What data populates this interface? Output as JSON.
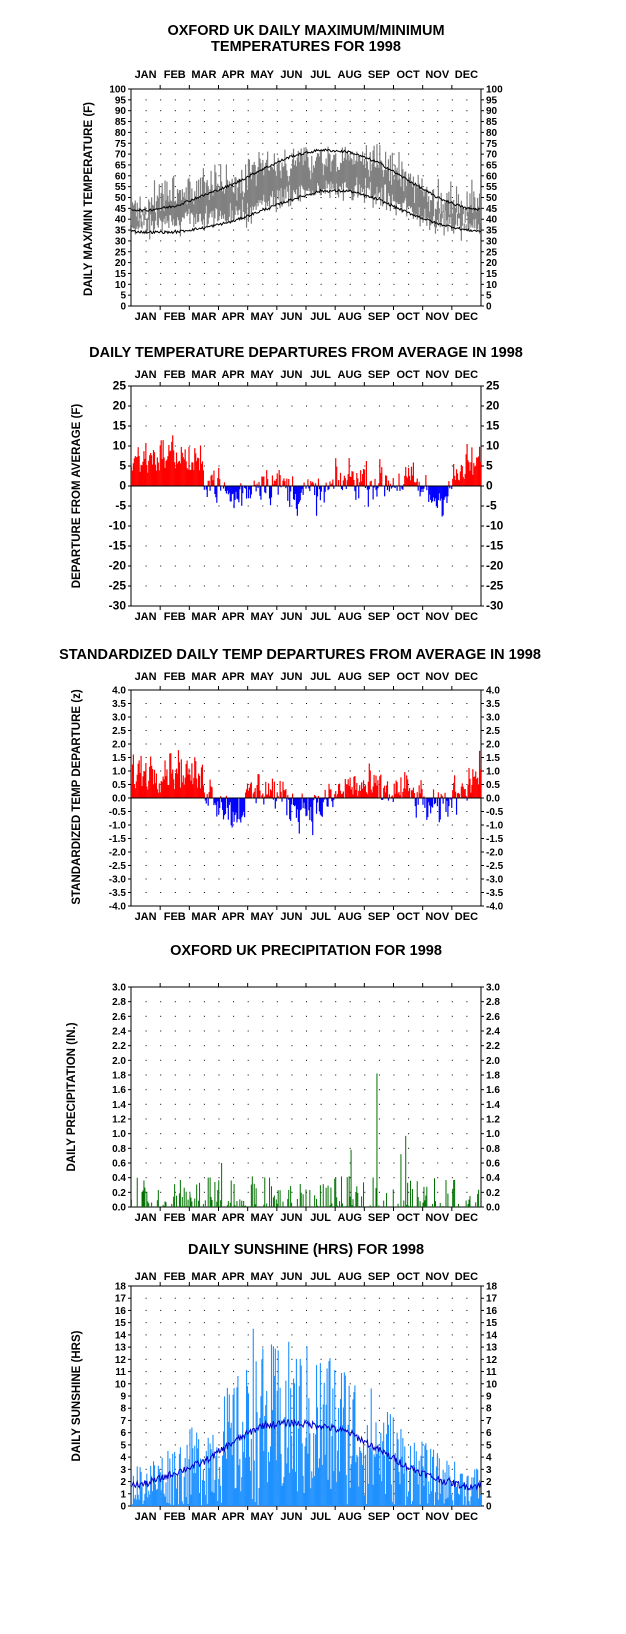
{
  "months": [
    "JAN",
    "FEB",
    "MAR",
    "APR",
    "MAY",
    "JUN",
    "JUL",
    "AUG",
    "SEP",
    "OCT",
    "NOV",
    "DEC"
  ],
  "chart_data": [
    {
      "id": "temps",
      "type": "line",
      "title_lines": [
        "OXFORD UK DAILY MAXIMUM/MINIMUM",
        "TEMPERATURES FOR 1998"
      ],
      "ylabel": "DAILY MAX/MIN TEMPERATURE (F)",
      "ylim": [
        0,
        100
      ],
      "yticks": [
        0,
        5,
        10,
        15,
        20,
        25,
        30,
        35,
        40,
        45,
        50,
        55,
        60,
        65,
        70,
        75,
        80,
        85,
        90,
        95,
        100
      ],
      "x": "day of year 1-365",
      "series": [
        {
          "kind": "daily-range",
          "color": "#808080",
          "monthly_mean_max": [
            47,
            51,
            54,
            56,
            64,
            66,
            68,
            69,
            66,
            58,
            49,
            47
          ],
          "monthly_mean_min": [
            38,
            40,
            42,
            41,
            46,
            52,
            53,
            54,
            51,
            45,
            38,
            37
          ]
        },
        {
          "kind": "normal-max",
          "color": "#000000",
          "monthly": [
            44,
            46,
            51,
            56,
            63,
            69,
            72,
            71,
            66,
            58,
            50,
            45
          ]
        },
        {
          "kind": "normal-min",
          "color": "#000000",
          "monthly": [
            34,
            34,
            36,
            39,
            44,
            49,
            53,
            53,
            49,
            43,
            38,
            35
          ]
        }
      ],
      "grid": true
    },
    {
      "id": "depart",
      "type": "bar",
      "title_lines": [
        "DAILY TEMPERATURE DEPARTURES FROM AVERAGE IN 1998"
      ],
      "ylabel": "DEPARTURE FROM AVERAGE (F)",
      "ylim": [
        -30,
        25
      ],
      "yticks": [
        -30,
        -25,
        -20,
        -15,
        -10,
        -5,
        0,
        5,
        10,
        15,
        20,
        25
      ],
      "pos_color": "#ff0000",
      "neg_color": "#0000ff",
      "monthly_mean_departure": [
        6,
        7,
        3,
        -3,
        2,
        -1,
        -2,
        2,
        1,
        1,
        -3,
        4
      ],
      "grid": true
    },
    {
      "id": "zdepart",
      "type": "bar",
      "title_lines": [
        "STANDARDIZED DAILY TEMP DEPARTURES FROM AVERAGE IN 1998"
      ],
      "ylabel": "STANDARDIZED TEMP DEPARTURE (z)",
      "ylim": [
        -4.0,
        4.0
      ],
      "yticks": [
        -4.0,
        -3.5,
        -3.0,
        -2.5,
        -2.0,
        -1.5,
        -1.0,
        -0.5,
        0.0,
        0.5,
        1.0,
        1.5,
        2.0,
        2.5,
        3.0,
        3.5,
        4.0
      ],
      "pos_color": "#ff0000",
      "neg_color": "#0000ff",
      "monthly_mean_z": [
        0.9,
        1.0,
        0.5,
        -0.5,
        0.4,
        -0.2,
        -0.3,
        0.4,
        0.2,
        0.2,
        -0.5,
        0.6
      ],
      "grid": true
    },
    {
      "id": "precip",
      "type": "bar",
      "title_lines": [
        "OXFORD UK PRECIPITATION FOR 1998"
      ],
      "ylabel": "DAILY PRECIPITATION (IN.)",
      "ylim": [
        0.0,
        3.0
      ],
      "yticks": [
        0.0,
        0.2,
        0.4,
        0.6,
        0.8,
        1.0,
        1.2,
        1.4,
        1.6,
        1.8,
        2.0,
        2.2,
        2.4,
        2.6,
        2.8,
        3.0
      ],
      "color": "#007000",
      "notable_days": [
        {
          "day": 257,
          "value": 1.82
        },
        {
          "day": 287,
          "value": 0.97
        },
        {
          "day": 230,
          "value": 0.78
        },
        {
          "day": 282,
          "value": 0.72
        },
        {
          "day": 95,
          "value": 0.6
        }
      ],
      "grid": true
    },
    {
      "id": "sun",
      "type": "bar",
      "title_lines": [
        "DAILY SUNSHINE (HRS) FOR 1998"
      ],
      "ylabel": "DAILY SUNSHINE (HRS)",
      "ylim": [
        0,
        18
      ],
      "yticks": [
        0,
        1,
        2,
        3,
        4,
        5,
        6,
        7,
        8,
        9,
        10,
        11,
        12,
        13,
        14,
        15,
        16,
        17,
        18
      ],
      "color": "#1e90ff",
      "avg_color": "#0000cc",
      "monthly_avg": [
        1.8,
        2.7,
        3.6,
        5.2,
        6.6,
        6.8,
        6.6,
        6.0,
        4.6,
        3.2,
        2.2,
        1.6
      ],
      "max": {
        "day": 128,
        "value": 14.5
      },
      "grid": true
    }
  ]
}
